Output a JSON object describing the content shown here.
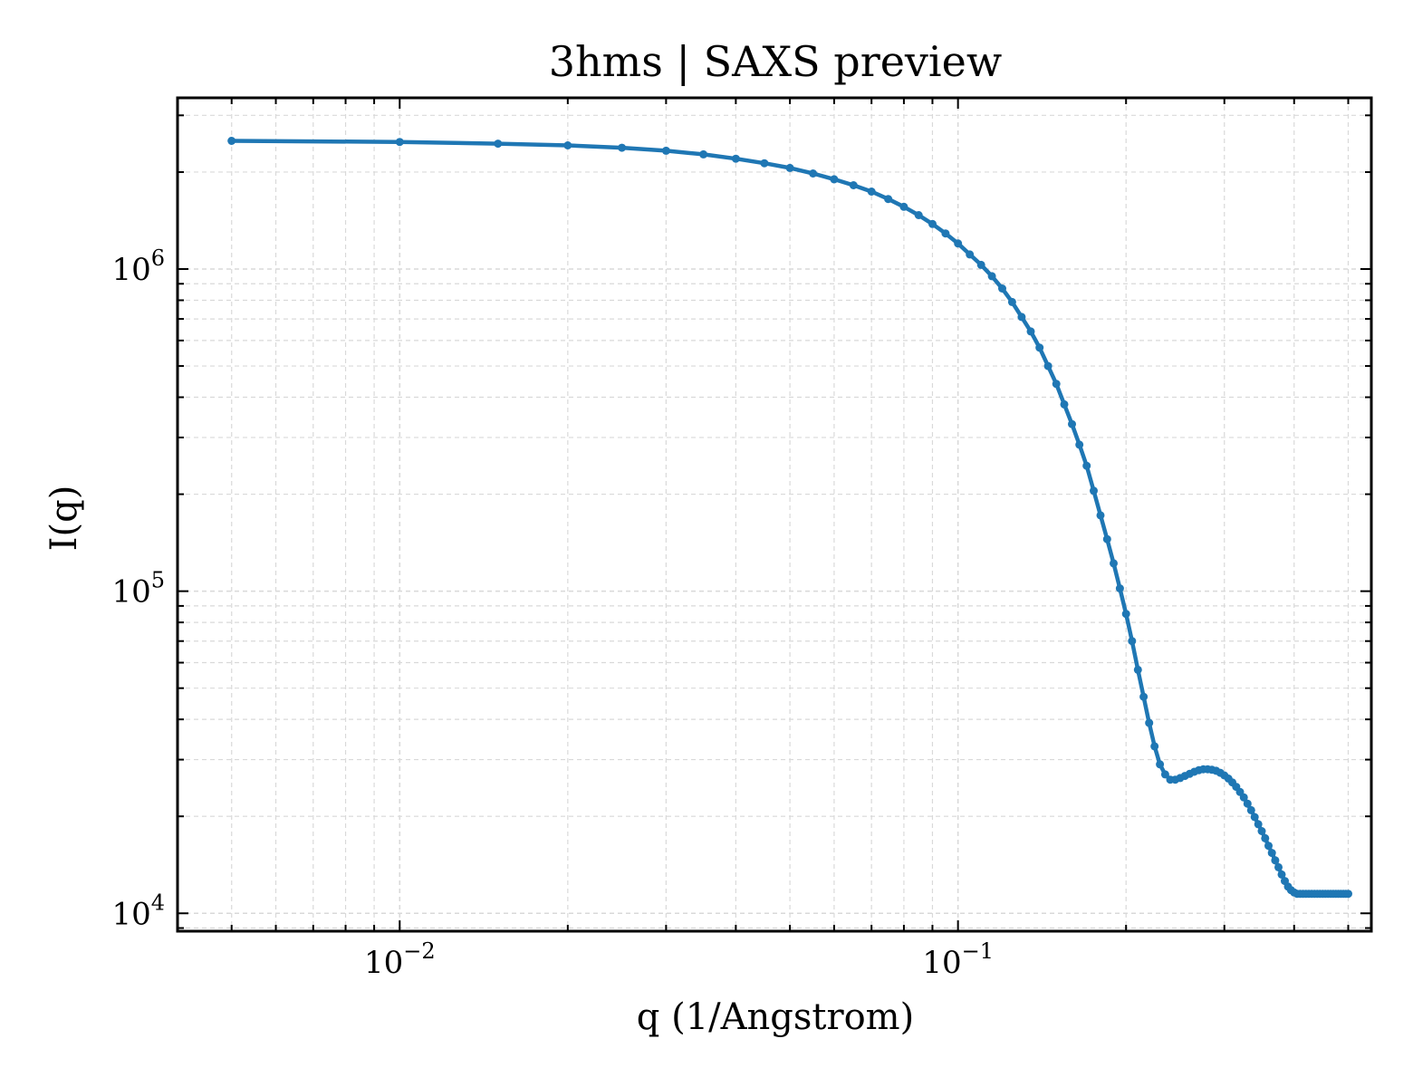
{
  "chart_data": {
    "type": "line",
    "title": "3hms | SAXS preview",
    "xlabel": "q (1/Angstrom)",
    "ylabel": "I(q)",
    "x_scale": "log",
    "y_scale": "log",
    "xlim": [
      0.004,
      0.55
    ],
    "ylim": [
      8800,
      3400000
    ],
    "x_ticks": [
      {
        "value": 0.01,
        "base": "10",
        "exp": "−2"
      },
      {
        "value": 0.1,
        "base": "10",
        "exp": "−1"
      }
    ],
    "y_ticks": [
      {
        "value": 10000,
        "base": "10",
        "exp": "4"
      },
      {
        "value": 100000,
        "base": "10",
        "exp": "5"
      },
      {
        "value": 1000000,
        "base": "10",
        "exp": "6"
      }
    ],
    "grid": true,
    "colors": {
      "line": "#1f77b4",
      "grid": "#d9d9d9",
      "axes": "#000000"
    },
    "series": [
      {
        "x": [
          0.005,
          0.01,
          0.015,
          0.02,
          0.025,
          0.03,
          0.035,
          0.04,
          0.045,
          0.05,
          0.055,
          0.06,
          0.065,
          0.07,
          0.075,
          0.08,
          0.085,
          0.09,
          0.095,
          0.1,
          0.105,
          0.11,
          0.115,
          0.12,
          0.125,
          0.13,
          0.135,
          0.14,
          0.145,
          0.15,
          0.155,
          0.16,
          0.165,
          0.17,
          0.175,
          0.18,
          0.185,
          0.19,
          0.195,
          0.2,
          0.205,
          0.21,
          0.215,
          0.22,
          0.225,
          0.23,
          0.235,
          0.24,
          0.245,
          0.25,
          0.255,
          0.26,
          0.265,
          0.27,
          0.275,
          0.28,
          0.285,
          0.29,
          0.295,
          0.3,
          0.305,
          0.31,
          0.315,
          0.32,
          0.325,
          0.33,
          0.335,
          0.34,
          0.345,
          0.35,
          0.355,
          0.36,
          0.365,
          0.37,
          0.375,
          0.38,
          0.385,
          0.39,
          0.395,
          0.4,
          0.405,
          0.41,
          0.415,
          0.42,
          0.425,
          0.43,
          0.435,
          0.44,
          0.445,
          0.45,
          0.455,
          0.46,
          0.465,
          0.47,
          0.475,
          0.48,
          0.485,
          0.49,
          0.495,
          0.5
        ],
        "y": [
          2500000,
          2480000,
          2450000,
          2420000,
          2380000,
          2330000,
          2270000,
          2200000,
          2130000,
          2060000,
          1980000,
          1900000,
          1820000,
          1740000,
          1650000,
          1560000,
          1470000,
          1380000,
          1290000,
          1200000,
          1110000,
          1030000,
          950000,
          870000,
          790000,
          710000,
          640000,
          570000,
          500000,
          440000,
          380000,
          330000,
          285000,
          245000,
          205000,
          172000,
          145000,
          122000,
          102000,
          85000,
          70000,
          57000,
          47000,
          39000,
          33000,
          29000,
          27000,
          26000,
          26000,
          26300,
          26700,
          27100,
          27500,
          27800,
          28000,
          28000,
          27900,
          27700,
          27300,
          26800,
          26200,
          25500,
          24700,
          23800,
          22900,
          21900,
          20900,
          19900,
          18900,
          18000,
          17100,
          16200,
          15400,
          14600,
          13900,
          13200,
          12600,
          12100,
          11800,
          11600,
          11500,
          11500,
          11500,
          11500,
          11500,
          11500,
          11500,
          11500,
          11500,
          11500,
          11500,
          11500,
          11500,
          11500,
          11500,
          11500,
          11500,
          11500,
          11500,
          11500
        ]
      }
    ]
  }
}
